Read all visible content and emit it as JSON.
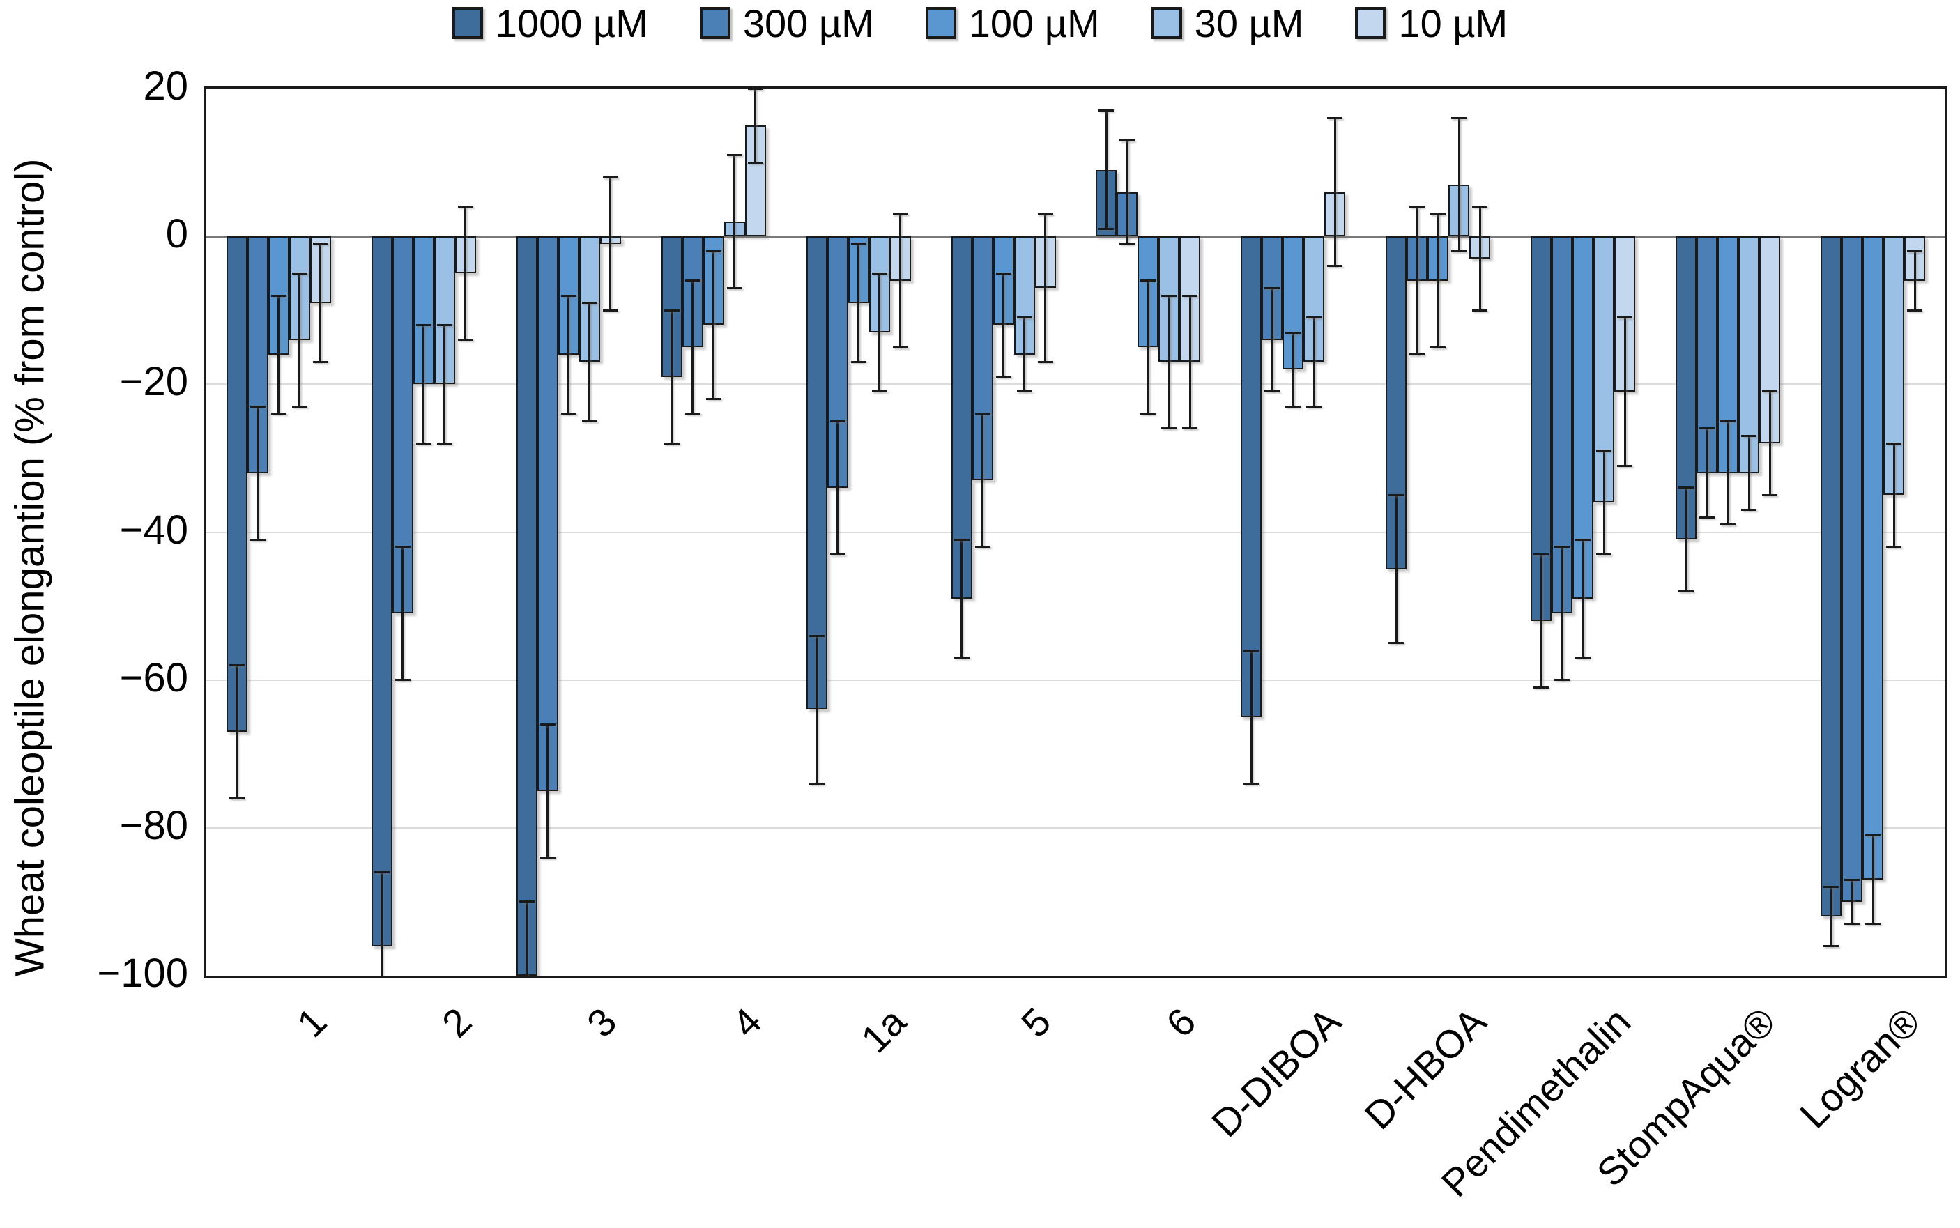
{
  "chart_data": {
    "type": "bar",
    "title": "",
    "ylabel": "Wheat coleoptile elongantion (% from control)",
    "xlabel": "",
    "ylim": [
      -100,
      20
    ],
    "yticks": [
      20,
      0,
      -20,
      -40,
      -60,
      -80,
      -100
    ],
    "grid": "horizontal",
    "legend_position": "top-center",
    "error_bars": true,
    "frame_color": "#1a1a1a",
    "gridline_color": "#dcdcdc",
    "zero_line_color": "#7a7a7a",
    "error_bar_color": "#1a1a1a",
    "categories": [
      "1",
      "2",
      "3",
      "4",
      "1a",
      "5",
      "6",
      "D-DIBOA",
      "D-HBOA",
      "Pendimethalin",
      "StompAqua®",
      "Logran®"
    ],
    "series": [
      {
        "name": "1000 µM",
        "color": "#3E6D9C",
        "values": [
          -67,
          -96,
          -100,
          -19,
          -64,
          -49,
          9,
          -65,
          -45,
          -52,
          -41,
          -92
        ],
        "errors": [
          9,
          10,
          10,
          9,
          10,
          8,
          8,
          9,
          10,
          9,
          7,
          4
        ]
      },
      {
        "name": "300 µM",
        "color": "#4A80B5",
        "values": [
          -32,
          -51,
          -75,
          -15,
          -34,
          -33,
          6,
          -14,
          -6,
          -51,
          -32,
          -90
        ],
        "errors": [
          9,
          9,
          9,
          9,
          9,
          9,
          7,
          7,
          10,
          9,
          6,
          3
        ]
      },
      {
        "name": "100 µM",
        "color": "#5A96CF",
        "values": [
          -16,
          -20,
          -16,
          -12,
          -9,
          -12,
          -15,
          -18,
          -6,
          -49,
          -32,
          -87
        ],
        "errors": [
          8,
          8,
          8,
          10,
          8,
          7,
          9,
          5,
          9,
          8,
          7,
          6
        ]
      },
      {
        "name": "30 µM",
        "color": "#9BC0E5",
        "values": [
          -14,
          -20,
          -17,
          2,
          -13,
          -16,
          -17,
          -17,
          7,
          -36,
          -32,
          -35
        ],
        "errors": [
          9,
          8,
          8,
          9,
          8,
          5,
          9,
          6,
          9,
          7,
          5,
          7
        ]
      },
      {
        "name": "10 µM",
        "color": "#C3D8EE",
        "values": [
          -9,
          -5,
          -1,
          15,
          -6,
          -7,
          -17,
          6,
          -3,
          -21,
          -28,
          -6
        ],
        "errors": [
          8,
          9,
          9,
          5,
          9,
          10,
          9,
          10,
          7,
          10,
          7,
          4
        ]
      }
    ]
  }
}
